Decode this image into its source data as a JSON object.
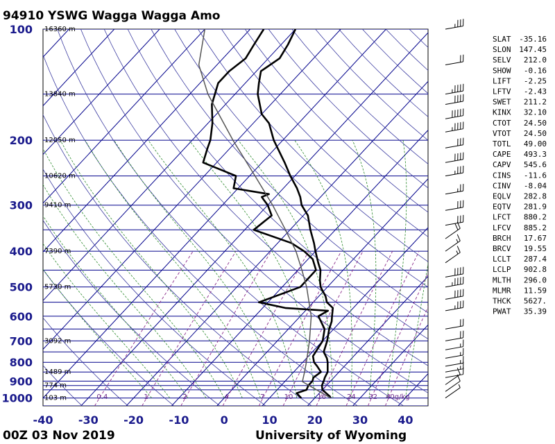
{
  "header": {
    "title": "94910 YSWG Wagga Wagga Amo"
  },
  "footer": {
    "left": "00Z 03 Nov 2019",
    "right": "University of Wyoming"
  },
  "chart_data": {
    "type": "line",
    "chart_kind": "Skew-T log-P",
    "pressure_ticks": [
      100,
      200,
      300,
      400,
      500,
      600,
      700,
      800,
      900,
      1000
    ],
    "temperature_ticks": [
      -40,
      -30,
      -20,
      -10,
      0,
      10,
      20,
      30,
      40
    ],
    "xlim": [
      -40,
      45
    ],
    "ylim_pressure": [
      1050,
      100
    ],
    "height_labels": [
      {
        "p": 100,
        "text": "16360 m"
      },
      {
        "p": 150,
        "text": "13840 m"
      },
      {
        "p": 200,
        "text": "12050 m"
      },
      {
        "p": 250,
        "text": "10620 m"
      },
      {
        "p": 300,
        "text": "9410 m"
      },
      {
        "p": 400,
        "text": "7390 m"
      },
      {
        "p": 500,
        "text": "5730 m"
      },
      {
        "p": 700,
        "text": "3092 m"
      },
      {
        "p": 850,
        "text": "1489 m"
      },
      {
        "p": 925,
        "text": "774 m"
      },
      {
        "p": 1000,
        "text": "103 m"
      }
    ],
    "mixing_ratio_labels": [
      "0.4",
      "1",
      "2",
      "4",
      "7",
      "10",
      "16",
      "24",
      "32",
      "40g/kg"
    ],
    "series": [
      {
        "label": "temperature",
        "color": "#000000",
        "points": [
          [
            1000,
            23.5
          ],
          [
            990,
            23
          ],
          [
            970,
            21.5
          ],
          [
            950,
            20
          ],
          [
            925,
            19
          ],
          [
            900,
            18.5
          ],
          [
            880,
            18
          ],
          [
            850,
            17.5
          ],
          [
            800,
            15.5
          ],
          [
            780,
            14.5
          ],
          [
            750,
            12.5
          ],
          [
            700,
            11
          ],
          [
            650,
            9
          ],
          [
            620,
            8
          ],
          [
            600,
            7
          ],
          [
            570,
            5.5
          ],
          [
            550,
            3
          ],
          [
            530,
            1.5
          ],
          [
            500,
            -1.5
          ],
          [
            480,
            -3
          ],
          [
            450,
            -5
          ],
          [
            430,
            -7
          ],
          [
            400,
            -10
          ],
          [
            380,
            -12
          ],
          [
            350,
            -15.5
          ],
          [
            320,
            -19
          ],
          [
            300,
            -22.5
          ],
          [
            285,
            -24.5
          ],
          [
            270,
            -27
          ],
          [
            250,
            -31
          ],
          [
            230,
            -35
          ],
          [
            200,
            -42
          ],
          [
            180,
            -46.5
          ],
          [
            170,
            -50
          ],
          [
            150,
            -55
          ],
          [
            140,
            -57
          ],
          [
            130,
            -59
          ],
          [
            120,
            -57.5
          ],
          [
            110,
            -58.5
          ],
          [
            100,
            -60
          ]
        ]
      },
      {
        "label": "dewpoint",
        "color": "#000000",
        "points": [
          [
            1000,
            17
          ],
          [
            970,
            15
          ],
          [
            950,
            16.5
          ],
          [
            925,
            16
          ],
          [
            900,
            16
          ],
          [
            880,
            15.5
          ],
          [
            850,
            16
          ],
          [
            820,
            14
          ],
          [
            800,
            12.5
          ],
          [
            770,
            11
          ],
          [
            700,
            10
          ],
          [
            650,
            8
          ],
          [
            600,
            4
          ],
          [
            580,
            5
          ],
          [
            570,
            -5
          ],
          [
            550,
            -12
          ],
          [
            500,
            -6
          ],
          [
            450,
            -6
          ],
          [
            420,
            -9
          ],
          [
            400,
            -12.5
          ],
          [
            380,
            -17
          ],
          [
            350,
            -28
          ],
          [
            320,
            -27
          ],
          [
            300,
            -30
          ],
          [
            290,
            -32
          ],
          [
            285,
            -33
          ],
          [
            280,
            -32
          ],
          [
            270,
            -41
          ],
          [
            250,
            -43
          ],
          [
            230,
            -53
          ],
          [
            210,
            -55
          ],
          [
            200,
            -56
          ],
          [
            180,
            -59
          ],
          [
            160,
            -63
          ],
          [
            140,
            -66
          ],
          [
            130,
            -66
          ],
          [
            120,
            -65
          ],
          [
            110,
            -66
          ],
          [
            100,
            -67
          ]
        ]
      },
      {
        "label": "parcel",
        "color": "#555555",
        "points": [
          [
            1000,
            23.5
          ],
          [
            902.8,
            13.9
          ],
          [
            850,
            12.4
          ],
          [
            800,
            10.8
          ],
          [
            700,
            7.1
          ],
          [
            600,
            2.4
          ],
          [
            500,
            -4.6
          ],
          [
            450,
            -9.1
          ],
          [
            400,
            -14.3
          ],
          [
            350,
            -21
          ],
          [
            300,
            -28.9
          ],
          [
            250,
            -38.8
          ],
          [
            200,
            -51
          ],
          [
            150,
            -66
          ],
          [
            125,
            -74
          ],
          [
            100,
            -80
          ]
        ]
      }
    ],
    "wind_barbs": [
      {
        "p": 100,
        "speed": 35,
        "dir": "W"
      },
      {
        "p": 125,
        "speed": 20,
        "dir": "W"
      },
      {
        "p": 150,
        "speed": 45,
        "dir": "W"
      },
      {
        "p": 160,
        "speed": 40,
        "dir": "W"
      },
      {
        "p": 175,
        "speed": 50,
        "dir": "W"
      },
      {
        "p": 190,
        "speed": 45,
        "dir": "W"
      },
      {
        "p": 210,
        "speed": 30,
        "dir": "W"
      },
      {
        "p": 230,
        "speed": 40,
        "dir": "W"
      },
      {
        "p": 250,
        "speed": 35,
        "dir": "W"
      },
      {
        "p": 280,
        "speed": 25,
        "dir": "W"
      },
      {
        "p": 310,
        "speed": 30,
        "dir": "W"
      },
      {
        "p": 340,
        "speed": 30,
        "dir": "W"
      },
      {
        "p": 370,
        "speed": 20,
        "dir": "NW"
      },
      {
        "p": 400,
        "speed": 15,
        "dir": "NW"
      },
      {
        "p": 430,
        "speed": 15,
        "dir": "NW"
      },
      {
        "p": 470,
        "speed": 40,
        "dir": "W"
      },
      {
        "p": 500,
        "speed": 45,
        "dir": "W"
      },
      {
        "p": 540,
        "speed": 40,
        "dir": "W"
      },
      {
        "p": 580,
        "speed": 35,
        "dir": "W"
      },
      {
        "p": 650,
        "speed": 20,
        "dir": "W"
      },
      {
        "p": 700,
        "speed": 20,
        "dir": "W"
      },
      {
        "p": 740,
        "speed": 15,
        "dir": "W"
      },
      {
        "p": 780,
        "speed": 15,
        "dir": "W"
      },
      {
        "p": 820,
        "speed": 15,
        "dir": "W"
      },
      {
        "p": 850,
        "speed": 15,
        "dir": "W"
      },
      {
        "p": 880,
        "speed": 10,
        "dir": "W"
      },
      {
        "p": 920,
        "speed": 10,
        "dir": "NW"
      },
      {
        "p": 960,
        "speed": 10,
        "dir": "NW"
      },
      {
        "p": 1000,
        "speed": 5,
        "dir": "NW"
      }
    ]
  },
  "stats": [
    {
      "key": "SLAT",
      "value": "-35.16"
    },
    {
      "key": "SLON",
      "value": "147.45"
    },
    {
      "key": "SELV",
      "value": "212.0"
    },
    {
      "key": "SHOW",
      "value": "-0.16"
    },
    {
      "key": "LIFT",
      "value": "-2.25"
    },
    {
      "key": "LFTV",
      "value": "-2.43"
    },
    {
      "key": "SWET",
      "value": "211.2"
    },
    {
      "key": "KINX",
      "value": "32.10"
    },
    {
      "key": "CTOT",
      "value": "24.50"
    },
    {
      "key": "VTOT",
      "value": "24.50"
    },
    {
      "key": "TOTL",
      "value": "49.00"
    },
    {
      "key": "CAPE",
      "value": "493.3"
    },
    {
      "key": "CAPV",
      "value": "545.6"
    },
    {
      "key": "CINS",
      "value": "-11.6"
    },
    {
      "key": "CINV",
      "value": "-8.04"
    },
    {
      "key": "EQLV",
      "value": "282.8"
    },
    {
      "key": "EQTV",
      "value": "281.9"
    },
    {
      "key": "LFCT",
      "value": "880.2"
    },
    {
      "key": "LFCV",
      "value": "885.2"
    },
    {
      "key": "BRCH",
      "value": "17.67"
    },
    {
      "key": "BRCV",
      "value": "19.55"
    },
    {
      "key": "LCLT",
      "value": "287.4"
    },
    {
      "key": "LCLP",
      "value": "902.8"
    },
    {
      "key": "MLTH",
      "value": "296.0"
    },
    {
      "key": "MLMR",
      "value": "11.59"
    },
    {
      "key": "THCK",
      "value": "5627."
    },
    {
      "key": "PWAT",
      "value": "35.39"
    }
  ],
  "colors": {
    "isobar": "#00008b",
    "isotherm": "#00008b",
    "dry_adiabat": "#3a3aa0",
    "moist_adiabat": "#2e8b2e",
    "mixing_ratio": "#8b2a8b",
    "tick_text": "#1a1a8c"
  }
}
